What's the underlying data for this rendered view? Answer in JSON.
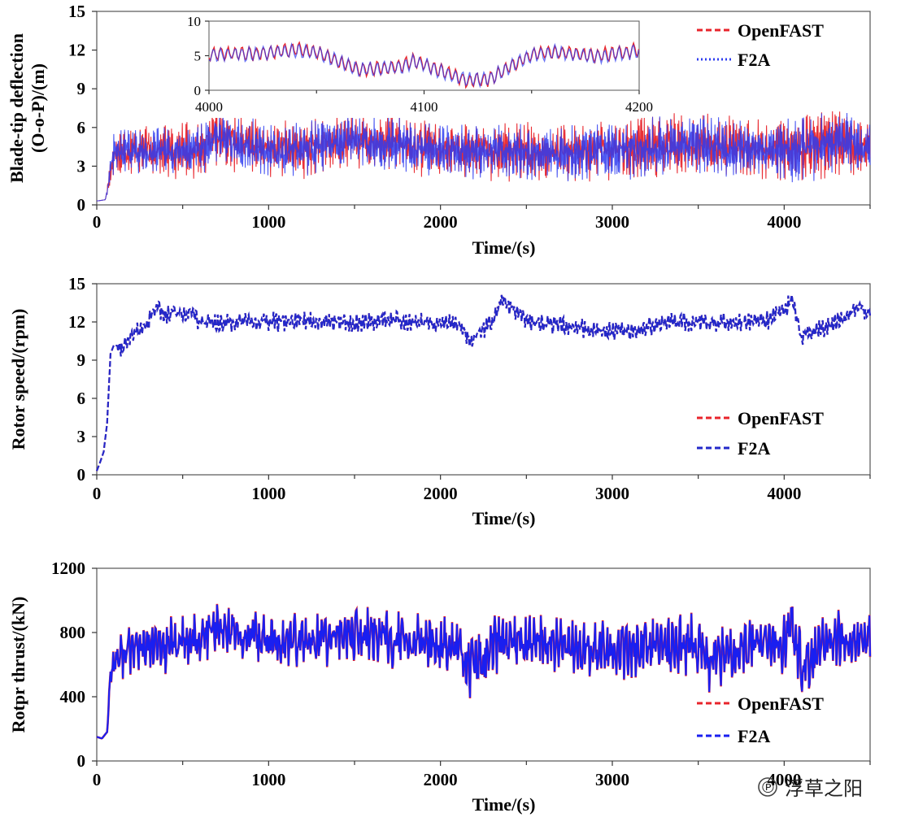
{
  "chart_data": [
    {
      "type": "line",
      "ylabel_line1": "Blade-tip deflection",
      "ylabel_line2": "(O-o-P)/(m)",
      "xlabel": "Time/(s)",
      "xlim": [
        0,
        4500
      ],
      "ylim": [
        0,
        15
      ],
      "xticks": [
        "0",
        "1000",
        "2000",
        "3000",
        "4000"
      ],
      "yticks": [
        "0",
        "3",
        "6",
        "9",
        "12",
        "15"
      ],
      "legend_position": "top-right",
      "series": [
        {
          "name": "OpenFAST",
          "color": "#e8242b",
          "dash": "dashed",
          "x": [
            0,
            50,
            100,
            200,
            400,
            600,
            700,
            900,
            1000,
            1200,
            1500,
            1800,
            2000,
            2300,
            2600,
            2800,
            3000,
            3200,
            3500,
            3800,
            4000,
            4100,
            4300,
            4500
          ],
          "y": [
            0.3,
            0.4,
            4.0,
            4.3,
            4.2,
            4.3,
            5.2,
            4.6,
            4.3,
            4.3,
            5.1,
            4.6,
            4.4,
            4.2,
            4.1,
            4.1,
            4.3,
            4.4,
            4.8,
            4.3,
            4.4,
            4.3,
            5.0,
            4.5
          ],
          "yrange": [
            [
              0.3,
              0.4
            ],
            [
              0.3,
              0.6
            ],
            [
              2.2,
              6.0
            ],
            [
              2.3,
              6.3
            ],
            [
              2.0,
              6.5
            ],
            [
              2.0,
              6.8
            ],
            [
              2.9,
              7.5
            ],
            [
              2.0,
              7.0
            ],
            [
              2.0,
              6.5
            ],
            [
              2.0,
              6.8
            ],
            [
              2.6,
              7.4
            ],
            [
              2.0,
              7.0
            ],
            [
              2.0,
              6.5
            ],
            [
              1.8,
              6.8
            ],
            [
              1.8,
              6.6
            ],
            [
              1.7,
              6.6
            ],
            [
              1.8,
              6.8
            ],
            [
              1.5,
              7.0
            ],
            [
              2.2,
              7.2
            ],
            [
              1.8,
              6.8
            ],
            [
              1.8,
              7.0
            ],
            [
              0.8,
              7.0
            ],
            [
              2.2,
              7.6
            ],
            [
              2.0,
              7.4
            ]
          ]
        },
        {
          "name": "F2A",
          "color": "#2e3cf0",
          "dash": "dotted",
          "x": [
            0,
            50,
            100,
            200,
            400,
            600,
            700,
            900,
            1000,
            1200,
            1500,
            1800,
            2000,
            2300,
            2600,
            2800,
            3000,
            3200,
            3500,
            3800,
            4000,
            4100,
            4300,
            4500
          ],
          "y": [
            0.3,
            0.4,
            4.0,
            4.2,
            4.1,
            4.3,
            5.1,
            4.5,
            4.2,
            4.3,
            5.0,
            4.5,
            4.3,
            4.1,
            4.0,
            4.0,
            4.2,
            4.3,
            4.7,
            4.2,
            4.3,
            4.2,
            4.9,
            4.4
          ],
          "yrange": [
            [
              0.3,
              0.4
            ],
            [
              0.3,
              0.6
            ],
            [
              2.3,
              5.8
            ],
            [
              2.4,
              6.1
            ],
            [
              2.1,
              6.3
            ],
            [
              2.1,
              6.6
            ],
            [
              3.0,
              7.2
            ],
            [
              2.1,
              6.8
            ],
            [
              2.1,
              6.3
            ],
            [
              2.1,
              6.6
            ],
            [
              2.7,
              7.1
            ],
            [
              2.1,
              6.8
            ],
            [
              2.1,
              6.3
            ],
            [
              1.9,
              6.6
            ],
            [
              1.9,
              6.4
            ],
            [
              1.8,
              6.4
            ],
            [
              1.9,
              6.6
            ],
            [
              1.6,
              6.8
            ],
            [
              2.3,
              7.0
            ],
            [
              1.9,
              6.6
            ],
            [
              1.9,
              6.8
            ],
            [
              0.9,
              6.8
            ],
            [
              2.3,
              7.3
            ],
            [
              2.1,
              7.1
            ]
          ]
        }
      ],
      "inset": {
        "xlim": [
          4000,
          4200
        ],
        "ylim": [
          0,
          10
        ],
        "xticks": [
          "4000",
          "4100",
          "4200"
        ],
        "yticks": [
          "0",
          "5",
          "10"
        ],
        "series": [
          {
            "name": "OpenFAST",
            "color": "#e8242b",
            "x": [
              4000,
              4010,
              4020,
              4030,
              4040,
              4050,
              4060,
              4070,
              4080,
              4090,
              4095,
              4100,
              4110,
              4120,
              4130,
              4140,
              4150,
              4160,
              4170,
              4180,
              4190,
              4200
            ],
            "y": [
              5.2,
              5.4,
              5.3,
              5.6,
              5.9,
              5.5,
              4.2,
              3.0,
              3.2,
              3.6,
              4.3,
              3.8,
              2.6,
              1.4,
              1.6,
              3.4,
              5.2,
              5.6,
              5.3,
              5.0,
              5.4,
              5.8
            ]
          },
          {
            "name": "F2A",
            "color": "#2e3cf0",
            "x": [
              4000,
              4010,
              4020,
              4030,
              4040,
              4050,
              4060,
              4070,
              4080,
              4090,
              4095,
              4100,
              4110,
              4120,
              4130,
              4140,
              4150,
              4160,
              4170,
              4180,
              4190,
              4200
            ],
            "y": [
              5.1,
              5.3,
              5.2,
              5.5,
              5.8,
              5.4,
              4.1,
              3.0,
              3.1,
              3.5,
              4.2,
              3.7,
              2.5,
              1.5,
              1.7,
              3.3,
              5.1,
              5.5,
              5.2,
              4.9,
              5.3,
              5.7
            ]
          }
        ]
      }
    },
    {
      "type": "line",
      "ylabel": "Rotor speed/(rpm)",
      "xlabel": "Time/(s)",
      "xlim": [
        0,
        4500
      ],
      "ylim": [
        0,
        15
      ],
      "xticks": [
        "0",
        "1000",
        "2000",
        "3000",
        "4000"
      ],
      "yticks": [
        "0",
        "3",
        "6",
        "9",
        "12",
        "15"
      ],
      "legend_position": "lower-right",
      "series": [
        {
          "name": "OpenFAST",
          "color": "#e8242b",
          "dash": "dashed",
          "x": [
            0,
            20,
            40,
            60,
            80,
            100,
            150,
            200,
            250,
            300,
            350,
            400,
            450,
            500,
            550,
            600,
            700,
            900,
            1100,
            1300,
            1500,
            1700,
            1900,
            2100,
            2170,
            2300,
            2360,
            2500,
            2800,
            3100,
            3300,
            3600,
            3900,
            4050,
            4100,
            4300,
            4450,
            4500
          ],
          "y": [
            0.3,
            1.0,
            1.8,
            4.0,
            9.5,
            10.2,
            10.0,
            11.0,
            11.3,
            12.0,
            13.2,
            12.4,
            13.0,
            12.6,
            12.9,
            12.0,
            11.9,
            12.0,
            12.0,
            12.1,
            11.9,
            12.2,
            12.0,
            11.9,
            10.5,
            12.0,
            13.8,
            12.1,
            11.5,
            11.2,
            12.0,
            11.9,
            12.1,
            13.6,
            10.8,
            12.0,
            13.0,
            12.4
          ],
          "noise": 0.9
        },
        {
          "name": "F2A",
          "color": "#2328c9",
          "dash": "dashed",
          "x": [
            0,
            20,
            40,
            60,
            80,
            100,
            150,
            200,
            250,
            300,
            350,
            400,
            450,
            500,
            550,
            600,
            700,
            900,
            1100,
            1300,
            1500,
            1700,
            1900,
            2100,
            2170,
            2300,
            2360,
            2500,
            2800,
            3100,
            3300,
            3600,
            3900,
            4050,
            4100,
            4300,
            4450,
            4500
          ],
          "y": [
            0.3,
            1.0,
            1.8,
            4.0,
            9.5,
            10.2,
            10.0,
            11.0,
            11.3,
            12.0,
            13.2,
            12.4,
            13.0,
            12.6,
            12.9,
            12.0,
            11.9,
            12.0,
            12.0,
            12.1,
            11.9,
            12.2,
            12.0,
            11.9,
            10.5,
            12.0,
            13.8,
            12.1,
            11.5,
            11.2,
            12.0,
            11.9,
            12.1,
            13.6,
            10.8,
            12.0,
            13.0,
            12.4
          ],
          "noise": 0.9
        }
      ]
    },
    {
      "type": "line",
      "ylabel": "Rotpr thrust/(kN)",
      "xlabel": "Time/(s)",
      "xlim": [
        0,
        4500
      ],
      "ylim": [
        0,
        1200
      ],
      "xticks": [
        "0",
        "1000",
        "2000",
        "3000",
        "4000"
      ],
      "yticks": [
        "0",
        "400",
        "800",
        "1200"
      ],
      "legend_position": "lower-right",
      "series": [
        {
          "name": "OpenFAST",
          "color": "#e8242b",
          "dash": "dashed",
          "x": [
            0,
            30,
            60,
            80,
            100,
            200,
            400,
            600,
            700,
            900,
            1100,
            1300,
            1500,
            1700,
            1900,
            2100,
            2180,
            2300,
            2500,
            2800,
            3000,
            3200,
            3500,
            3560,
            3800,
            4000,
            4050,
            4100,
            4300,
            4500
          ],
          "y": [
            150,
            140,
            180,
            550,
            620,
            700,
            710,
            750,
            840,
            760,
            740,
            750,
            790,
            760,
            720,
            700,
            560,
            720,
            740,
            700,
            700,
            690,
            740,
            600,
            720,
            740,
            860,
            580,
            760,
            770
          ],
          "amp": [
            10,
            10,
            20,
            80,
            120,
            160,
            170,
            170,
            150,
            170,
            180,
            170,
            170,
            180,
            180,
            190,
            200,
            180,
            180,
            180,
            180,
            180,
            190,
            190,
            180,
            190,
            200,
            200,
            180,
            180
          ]
        },
        {
          "name": "F2A",
          "color": "#1a1ff0",
          "dash": "dashed",
          "x": [
            0,
            30,
            60,
            80,
            100,
            200,
            400,
            600,
            700,
            900,
            1100,
            1300,
            1500,
            1700,
            1900,
            2100,
            2180,
            2300,
            2500,
            2800,
            3000,
            3200,
            3500,
            3560,
            3800,
            4000,
            4050,
            4100,
            4300,
            4500
          ],
          "y": [
            150,
            140,
            180,
            550,
            620,
            700,
            710,
            750,
            840,
            760,
            740,
            750,
            790,
            760,
            720,
            700,
            560,
            720,
            740,
            700,
            700,
            690,
            740,
            600,
            720,
            740,
            860,
            580,
            760,
            770
          ],
          "amp": [
            10,
            10,
            20,
            75,
            115,
            155,
            165,
            165,
            145,
            165,
            175,
            165,
            165,
            175,
            175,
            185,
            195,
            175,
            175,
            175,
            175,
            175,
            185,
            185,
            175,
            185,
            195,
            195,
            175,
            175
          ]
        }
      ]
    }
  ],
  "watermark": "浮草之阳",
  "watermark_tag": "℗"
}
